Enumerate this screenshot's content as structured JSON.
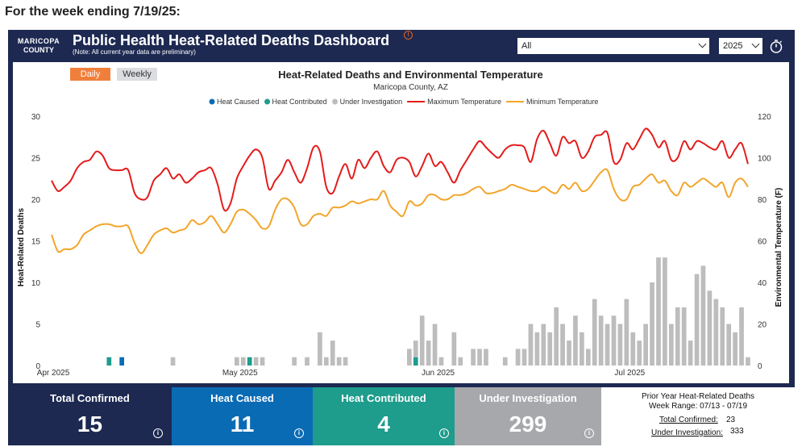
{
  "page": {
    "heading": "For the week ending 7/19/25:"
  },
  "header": {
    "logo_line1": "MARICOPA",
    "logo_line2": "COUNTY",
    "title": "Public Health Heat-Related Deaths Dashboard",
    "note": "(Note: All current year data are preliminary)",
    "filter_value": "All",
    "year_value": "2025"
  },
  "toggle": {
    "daily": "Daily",
    "weekly": "Weekly",
    "active": "daily"
  },
  "colors": {
    "heat_caused": "#0a6bb5",
    "heat_contributed": "#1e9c8c",
    "under_investigation": "#bdbdbd",
    "max_temp": "#e41b1b",
    "min_temp": "#f2a52a",
    "navy": "#1d2951"
  },
  "chart_data": {
    "type": "bar",
    "title": "Heat-Related Deaths and Environmental Temperature",
    "subtitle": "Maricopa County, AZ",
    "ylabel": "Heat-Related Deaths",
    "y2label": "Environmental Temperature (F)",
    "ylim": [
      0,
      30
    ],
    "y2lim": [
      0,
      120
    ],
    "yticks": [
      0,
      5,
      10,
      15,
      20,
      25,
      30
    ],
    "y2ticks": [
      0,
      20,
      40,
      60,
      80,
      100,
      120
    ],
    "xlim": [
      "2025-04-01",
      "2025-07-19"
    ],
    "xticks": [
      {
        "date": "2025-04-01",
        "label": "Apr 2025"
      },
      {
        "date": "2025-05-01",
        "label": "May 2025"
      },
      {
        "date": "2025-06-01",
        "label": "Jun 2025"
      },
      {
        "date": "2025-07-01",
        "label": "Jul 2025"
      }
    ],
    "legend_position": "top-center",
    "legend": [
      "Heat Caused",
      "Heat Contributed",
      "Under Investigation",
      "Maximum Temperature",
      "Minimum Temperature"
    ],
    "start_date": "2025-04-01",
    "heat_caused": [
      0,
      0,
      0,
      0,
      0,
      0,
      0,
      0,
      0,
      0,
      0,
      1,
      0,
      0,
      0,
      0,
      0,
      0,
      0,
      0,
      0,
      0,
      0,
      0,
      0,
      0,
      0,
      0,
      0,
      0,
      0,
      0,
      0,
      0,
      0,
      0,
      0,
      0,
      0,
      0,
      0,
      0,
      0,
      0,
      0,
      0,
      0,
      0,
      0,
      0,
      0,
      0,
      0,
      0,
      0,
      0,
      0,
      0,
      0,
      0,
      0,
      0,
      0,
      0,
      0,
      0,
      0,
      0,
      0,
      0,
      0,
      0,
      0,
      0,
      0,
      0,
      0,
      0,
      0,
      0,
      0,
      0,
      0,
      0,
      0,
      0,
      0,
      0,
      0,
      0,
      0,
      0,
      0,
      0,
      0,
      0,
      0,
      0,
      0,
      0,
      0,
      0,
      0,
      0,
      0,
      0,
      0,
      0,
      0,
      0
    ],
    "heat_contributed": [
      0,
      0,
      0,
      0,
      0,
      0,
      0,
      0,
      0,
      1,
      0,
      0,
      0,
      0,
      0,
      0,
      0,
      0,
      0,
      0,
      0,
      0,
      0,
      0,
      0,
      0,
      0,
      0,
      0,
      0,
      0,
      1,
      0,
      0,
      0,
      0,
      0,
      0,
      0,
      0,
      0,
      0,
      0,
      0,
      0,
      0,
      0,
      0,
      0,
      0,
      0,
      0,
      0,
      0,
      0,
      0,
      0,
      1,
      0,
      0,
      0,
      0,
      0,
      0,
      0,
      0,
      0,
      0,
      0,
      0,
      0,
      0,
      0,
      0,
      0,
      0,
      0,
      0,
      0,
      0,
      0,
      0,
      0,
      0,
      0,
      0,
      0,
      0,
      0,
      0,
      0,
      0,
      0,
      0,
      0,
      0,
      0,
      0,
      0,
      0,
      0,
      0,
      0,
      0,
      0,
      0,
      0,
      0,
      0,
      0
    ],
    "under_investigation": [
      0,
      0,
      0,
      0,
      0,
      0,
      0,
      0,
      0,
      0,
      0,
      0,
      0,
      0,
      0,
      0,
      0,
      0,
      0,
      1,
      0,
      0,
      0,
      0,
      0,
      0,
      0,
      0,
      0,
      1,
      1,
      0,
      1,
      1,
      0,
      0,
      0,
      0,
      1,
      0,
      1,
      0,
      4,
      1,
      3,
      1,
      1,
      0,
      0,
      0,
      0,
      0,
      0,
      0,
      0,
      0,
      2,
      2,
      6,
      3,
      5,
      1,
      0,
      4,
      1,
      0,
      2,
      2,
      2,
      0,
      0,
      1,
      0,
      2,
      2,
      5,
      4,
      5,
      4,
      7,
      5,
      3,
      6,
      4,
      2,
      8,
      6,
      5,
      6,
      5,
      8,
      4,
      3,
      5,
      10,
      13,
      13,
      5,
      7,
      7,
      3,
      11,
      12,
      9,
      8,
      7,
      5,
      4,
      7,
      1
    ],
    "heat_caused_fix": [],
    "max_temp": [
      89,
      84,
      86,
      89,
      95,
      98,
      99,
      103,
      101,
      95,
      94,
      94,
      94,
      83,
      80,
      81,
      89,
      92,
      95,
      90,
      92,
      88,
      90,
      93,
      94,
      95,
      87,
      75,
      78,
      90,
      96,
      101,
      104,
      100,
      85,
      89,
      93,
      99,
      93,
      88,
      95,
      105,
      103,
      86,
      83,
      91,
      97,
      90,
      99,
      95,
      100,
      103,
      96,
      93,
      99,
      100,
      98,
      91,
      96,
      102,
      96,
      98,
      93,
      88,
      94,
      99,
      104,
      108,
      105,
      102,
      100,
      104,
      106,
      106,
      105,
      98,
      109,
      113,
      107,
      101,
      110,
      107,
      108,
      100,
      103,
      110,
      111,
      112,
      98,
      99,
      107,
      104,
      109,
      114,
      111,
      105,
      108,
      99,
      100,
      108,
      104,
      108,
      107,
      105,
      104,
      108,
      100,
      104,
      107,
      97
    ],
    "min_temp": [
      63,
      55,
      56,
      56,
      58,
      63,
      65,
      67,
      68,
      68,
      67,
      67,
      67,
      59,
      54,
      58,
      63,
      65,
      66,
      64,
      65,
      66,
      70,
      68,
      69,
      72,
      68,
      64,
      68,
      74,
      75,
      73,
      70,
      66,
      67,
      75,
      80,
      80,
      76,
      68,
      68,
      72,
      73,
      72,
      76,
      76,
      77,
      79,
      78,
      79,
      80,
      80,
      84,
      77,
      74,
      72,
      79,
      77,
      78,
      82,
      82,
      80,
      80,
      82,
      82,
      83,
      85,
      86,
      83,
      83,
      84,
      85,
      87,
      86,
      85,
      84,
      84,
      86,
      84,
      83,
      87,
      85,
      88,
      84,
      85,
      89,
      93,
      94,
      85,
      80,
      80,
      86,
      87,
      90,
      92,
      88,
      89,
      84,
      82,
      88,
      86,
      88,
      90,
      88,
      86,
      88,
      81,
      88,
      90,
      86
    ]
  },
  "tiles": [
    {
      "label": "Total Confirmed",
      "value": "15"
    },
    {
      "label": "Heat Caused",
      "value": "11"
    },
    {
      "label": "Heat Contributed",
      "value": "4"
    },
    {
      "label": "Under Investigation",
      "value": "299"
    }
  ],
  "prior_year": {
    "title": "Prior Year Heat-Related Deaths",
    "week_range": "Week Range: 07/13 - 07/19",
    "total_confirmed_label": "Total Confirmed:",
    "total_confirmed_value": "23",
    "under_investigation_label": "Under Investigation:",
    "under_investigation_value": "333"
  }
}
